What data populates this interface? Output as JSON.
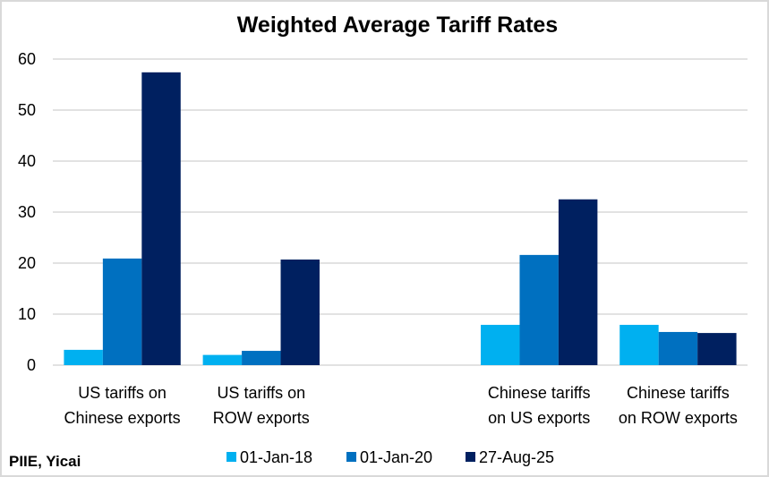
{
  "chart_data": {
    "type": "bar",
    "title": "Weighted Average Tariff Rates",
    "xlabel": "",
    "ylabel": "",
    "ylim": [
      0,
      60
    ],
    "yticks": [
      "0",
      "10",
      "20",
      "30",
      "40",
      "50",
      "60"
    ],
    "grid": true,
    "categories": [
      [
        "US tariffs on",
        "Chinese exports"
      ],
      [
        "US tariffs on",
        "ROW exports"
      ],
      [
        "",
        ""
      ],
      [
        "Chinese tariffs",
        "on US exports"
      ],
      [
        "Chinese tariffs",
        "on ROW exports"
      ]
    ],
    "series": [
      {
        "name": "01-Jan-18",
        "color": "#00b0f0",
        "values": [
          3.0,
          2.0,
          null,
          7.9,
          7.9
        ]
      },
      {
        "name": "01-Jan-20",
        "color": "#0070c0",
        "values": [
          20.9,
          2.8,
          null,
          21.6,
          6.5
        ]
      },
      {
        "name": "27-Aug-25",
        "color": "#002060",
        "values": [
          57.4,
          20.7,
          null,
          32.5,
          6.3
        ]
      }
    ],
    "legend_position": "bottom",
    "source_note": "PIIE, Yicai",
    "gridline_color": "#d9d9d9"
  }
}
